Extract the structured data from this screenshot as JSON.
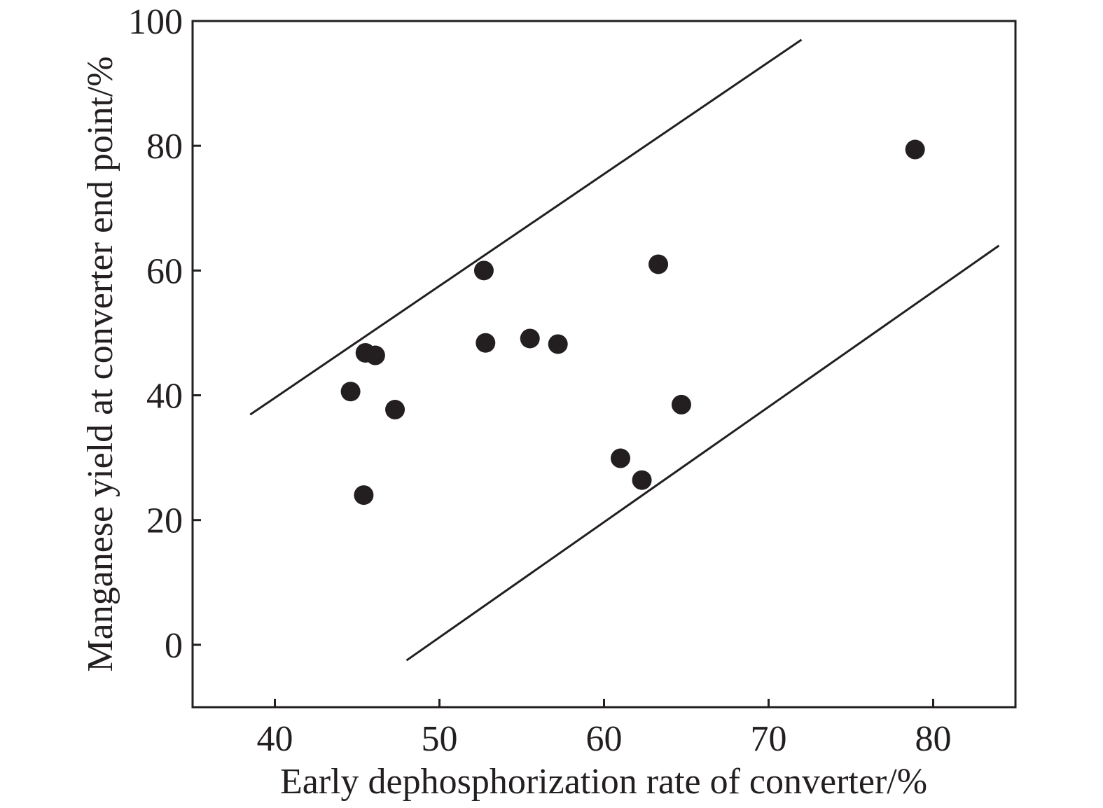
{
  "chart_data": {
    "type": "scatter",
    "xlabel": "Early dephosphorization rate of converter/%",
    "ylabel": "Manganese yield at converter end point/%",
    "xlim": [
      35,
      85
    ],
    "ylim": [
      -10,
      100
    ],
    "xticks": [
      40,
      50,
      60,
      70,
      80
    ],
    "yticks": [
      0,
      20,
      40,
      60,
      80,
      100
    ],
    "grid": false,
    "points": [
      {
        "x": 44.6,
        "y": 40.6
      },
      {
        "x": 45.4,
        "y": 24.0
      },
      {
        "x": 45.5,
        "y": 46.8
      },
      {
        "x": 46.1,
        "y": 46.4
      },
      {
        "x": 47.3,
        "y": 37.7
      },
      {
        "x": 52.7,
        "y": 60.0
      },
      {
        "x": 52.8,
        "y": 48.4
      },
      {
        "x": 55.5,
        "y": 49.1
      },
      {
        "x": 57.2,
        "y": 48.2
      },
      {
        "x": 61.0,
        "y": 29.9
      },
      {
        "x": 62.3,
        "y": 26.4
      },
      {
        "x": 63.3,
        "y": 61.0
      },
      {
        "x": 64.7,
        "y": 38.5
      },
      {
        "x": 78.9,
        "y": 79.4
      }
    ],
    "bounds": [
      {
        "x": [
          38.5,
          72.0
        ],
        "y": [
          36.9,
          97.0
        ]
      },
      {
        "x": [
          48.0,
          84.0
        ],
        "y": [
          -2.5,
          64.0
        ]
      }
    ],
    "colors": {
      "ink": "#231f20",
      "background": "#ffffff"
    }
  }
}
